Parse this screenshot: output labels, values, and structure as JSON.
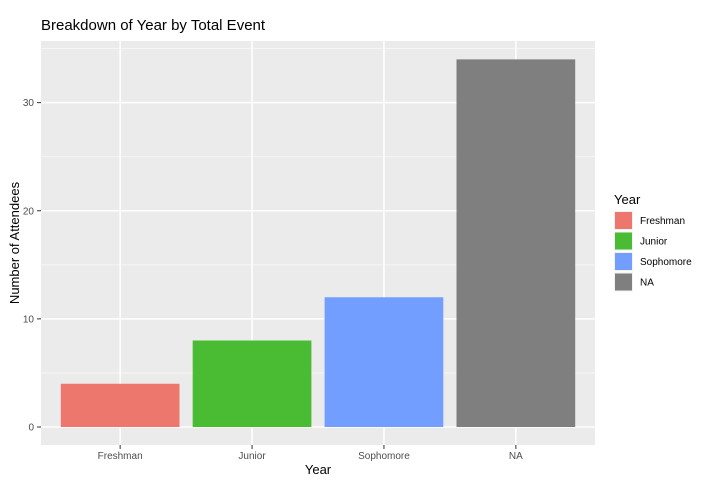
{
  "chart_data": {
    "type": "bar",
    "title": "Breakdown of Year by Total Event",
    "xlabel": "Year",
    "ylabel": "Number of Attendees",
    "categories": [
      "Freshman",
      "Junior",
      "Sophomore",
      "NA"
    ],
    "values": [
      4,
      8,
      12,
      34
    ],
    "colors": [
      "#ED776C",
      "#4ABC34",
      "#729EFF",
      "#7F7F7F"
    ],
    "ylim": [
      0,
      35.7
    ],
    "yticks": [
      0,
      10,
      20,
      30
    ],
    "grid": true,
    "legend": {
      "title": "Year",
      "position": "right",
      "entries": [
        "Freshman",
        "Junior",
        "Sophomore",
        "NA"
      ]
    }
  }
}
